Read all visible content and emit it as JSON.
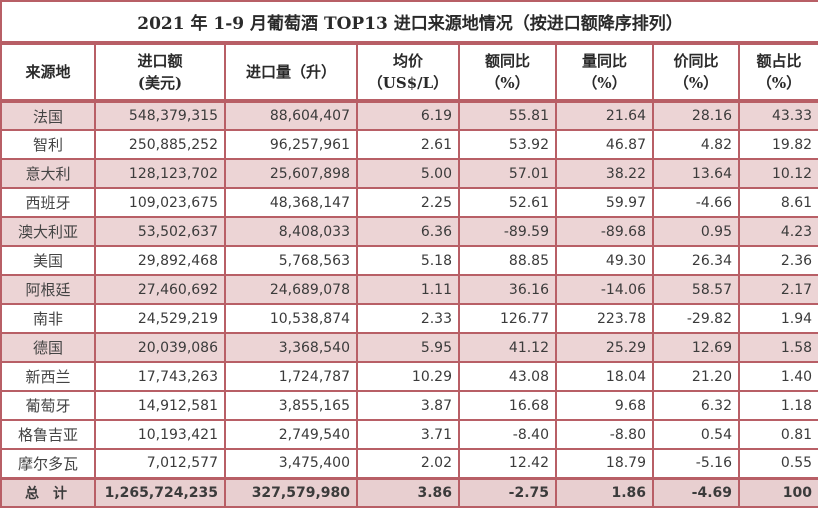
{
  "table": {
    "title": "2021 年 1-9 月葡萄酒 TOP13 进口来源地情况（按进口额降序排列）",
    "headers": [
      {
        "line1": "来源地",
        "line2": ""
      },
      {
        "line1": "进口额",
        "line2": "(美元)"
      },
      {
        "line1": "进口量（升）",
        "line2": ""
      },
      {
        "line1": "均价",
        "line2": "（US$/L）"
      },
      {
        "line1": "额同比",
        "line2": "（%）"
      },
      {
        "line1": "量同比",
        "line2": "（%）"
      },
      {
        "line1": "价同比",
        "line2": "（%）"
      },
      {
        "line1": "额占比",
        "line2": "（%）"
      }
    ],
    "rows": [
      {
        "origin": "法国",
        "value_usd": "548,379,315",
        "volume_l": "88,604,407",
        "avg_price": "6.19",
        "value_yoy": "55.81",
        "volume_yoy": "21.64",
        "price_yoy": "28.16",
        "value_share": "43.33"
      },
      {
        "origin": "智利",
        "value_usd": "250,885,252",
        "volume_l": "96,257,961",
        "avg_price": "2.61",
        "value_yoy": "53.92",
        "volume_yoy": "46.87",
        "price_yoy": "4.82",
        "value_share": "19.82"
      },
      {
        "origin": "意大利",
        "value_usd": "128,123,702",
        "volume_l": "25,607,898",
        "avg_price": "5.00",
        "value_yoy": "57.01",
        "volume_yoy": "38.22",
        "price_yoy": "13.64",
        "value_share": "10.12"
      },
      {
        "origin": "西班牙",
        "value_usd": "109,023,675",
        "volume_l": "48,368,147",
        "avg_price": "2.25",
        "value_yoy": "52.61",
        "volume_yoy": "59.97",
        "price_yoy": "-4.66",
        "value_share": "8.61"
      },
      {
        "origin": "澳大利亚",
        "value_usd": "53,502,637",
        "volume_l": "8,408,033",
        "avg_price": "6.36",
        "value_yoy": "-89.59",
        "volume_yoy": "-89.68",
        "price_yoy": "0.95",
        "value_share": "4.23"
      },
      {
        "origin": "美国",
        "value_usd": "29,892,468",
        "volume_l": "5,768,563",
        "avg_price": "5.18",
        "value_yoy": "88.85",
        "volume_yoy": "49.30",
        "price_yoy": "26.34",
        "value_share": "2.36"
      },
      {
        "origin": "阿根廷",
        "value_usd": "27,460,692",
        "volume_l": "24,689,078",
        "avg_price": "1.11",
        "value_yoy": "36.16",
        "volume_yoy": "-14.06",
        "price_yoy": "58.57",
        "value_share": "2.17"
      },
      {
        "origin": "南非",
        "value_usd": "24,529,219",
        "volume_l": "10,538,874",
        "avg_price": "2.33",
        "value_yoy": "126.77",
        "volume_yoy": "223.78",
        "price_yoy": "-29.82",
        "value_share": "1.94"
      },
      {
        "origin": "德国",
        "value_usd": "20,039,086",
        "volume_l": "3,368,540",
        "avg_price": "5.95",
        "value_yoy": "41.12",
        "volume_yoy": "25.29",
        "price_yoy": "12.69",
        "value_share": "1.58"
      },
      {
        "origin": "新西兰",
        "value_usd": "17,743,263",
        "volume_l": "1,724,787",
        "avg_price": "10.29",
        "value_yoy": "43.08",
        "volume_yoy": "18.04",
        "price_yoy": "21.20",
        "value_share": "1.40"
      },
      {
        "origin": "葡萄牙",
        "value_usd": "14,912,581",
        "volume_l": "3,855,165",
        "avg_price": "3.87",
        "value_yoy": "16.68",
        "volume_yoy": "9.68",
        "price_yoy": "6.32",
        "value_share": "1.18"
      },
      {
        "origin": "格鲁吉亚",
        "value_usd": "10,193,421",
        "volume_l": "2,749,540",
        "avg_price": "3.71",
        "value_yoy": "-8.40",
        "volume_yoy": "-8.80",
        "price_yoy": "0.54",
        "value_share": "0.81"
      },
      {
        "origin": "摩尔多瓦",
        "value_usd": "7,012,577",
        "volume_l": "3,475,400",
        "avg_price": "2.02",
        "value_yoy": "12.42",
        "volume_yoy": "18.79",
        "price_yoy": "-5.16",
        "value_share": "0.55"
      }
    ],
    "total": {
      "origin": "总计",
      "value_usd": "1,265,724,235",
      "volume_l": "327,579,980",
      "avg_price": "3.86",
      "value_yoy": "-2.75",
      "volume_yoy": "1.86",
      "price_yoy": "-4.69",
      "value_share": "100"
    }
  },
  "colors": {
    "border": "#b85f66",
    "shaded_row": "#ecd4d5",
    "total_row": "#e8cfd0",
    "text": "#3b3b3b"
  }
}
